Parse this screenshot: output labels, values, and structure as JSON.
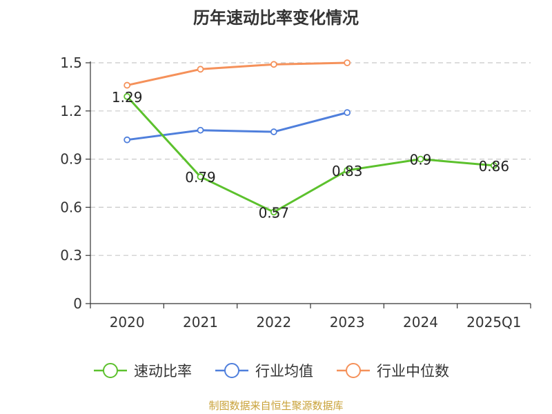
{
  "chart_data": {
    "type": "line",
    "title": "历年速动比率变化情况",
    "categories": [
      "2020",
      "2021",
      "2022",
      "2023",
      "2024",
      "2025Q1"
    ],
    "xlabel": "",
    "ylabel": "",
    "ylim": [
      0,
      1.5
    ],
    "yticks": [
      0,
      0.3,
      0.6,
      0.9,
      1.2,
      1.5
    ],
    "ytick_labels": [
      "0",
      "0.3",
      "0.6",
      "0.9",
      "1.2",
      "1.5"
    ],
    "grid": "horizontal dashed",
    "legend_position": "bottom",
    "series": [
      {
        "name": "速动比率",
        "color": "#5cc12d",
        "values": [
          1.29,
          0.79,
          0.57,
          0.83,
          0.9,
          0.86
        ],
        "labels": [
          "1.29",
          "0.79",
          "0.57",
          "0.83",
          "0.9",
          "0.86"
        ],
        "show_labels": true
      },
      {
        "name": "行业均值",
        "color": "#4f7fdc",
        "values": [
          1.02,
          1.08,
          1.07,
          1.19,
          null,
          null
        ],
        "show_labels": false
      },
      {
        "name": "行业中位数",
        "color": "#f5915a",
        "values": [
          1.36,
          1.46,
          1.49,
          1.5,
          null,
          null
        ],
        "show_labels": false
      }
    ]
  },
  "footer": {
    "source": "制图数据来自恒生聚源数据库"
  }
}
